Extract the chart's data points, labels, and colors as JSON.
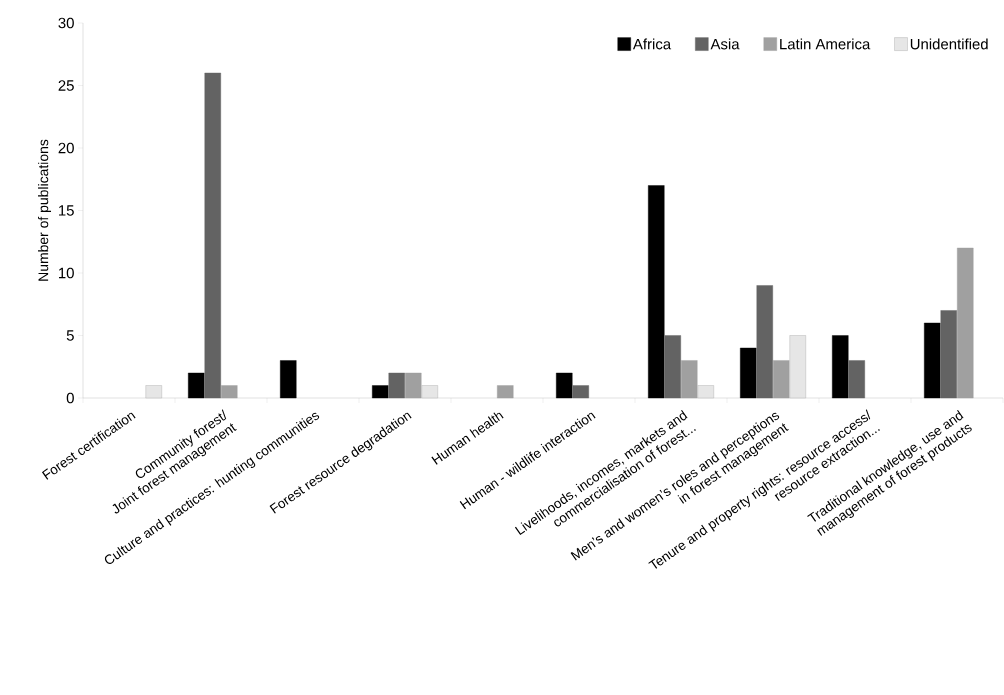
{
  "chart_data": {
    "type": "bar",
    "categories": [
      "Forest certification",
      "Community forest/\nJoint forest management",
      "Culture and practices: hunting communities",
      "Forest resource degradation",
      "Human health",
      "Human - wildlife interaction",
      "Livelihoods, incomes, markets and\ncommercialisation of forest...",
      "Men’s and women’s roles and perceptions\nin forest management",
      "Tenure and property rights: resource access/\nresource extraction...",
      "Traditional knowledge, use and\nmanagement of forest products"
    ],
    "series": [
      {
        "name": "Africa",
        "color": "#000000",
        "values": [
          null,
          2,
          3,
          1,
          null,
          2,
          17,
          4,
          5,
          6
        ]
      },
      {
        "name": "Asia",
        "color": "#636363",
        "values": [
          null,
          26,
          null,
          2,
          null,
          1,
          5,
          9,
          3,
          7
        ]
      },
      {
        "name": "Latin America",
        "color": "#a0a0a0",
        "values": [
          null,
          1,
          null,
          2,
          1,
          null,
          3,
          3,
          null,
          12
        ]
      },
      {
        "name": "Unidentified",
        "color": "#e6e6e6",
        "values": [
          1,
          null,
          null,
          1,
          null,
          null,
          1,
          5,
          null,
          null
        ]
      }
    ],
    "ylabel": "Number of publications",
    "ylim": [
      0,
      30
    ],
    "yticks": [
      0,
      5,
      10,
      15,
      20,
      25,
      30
    ],
    "legend": "top right"
  }
}
